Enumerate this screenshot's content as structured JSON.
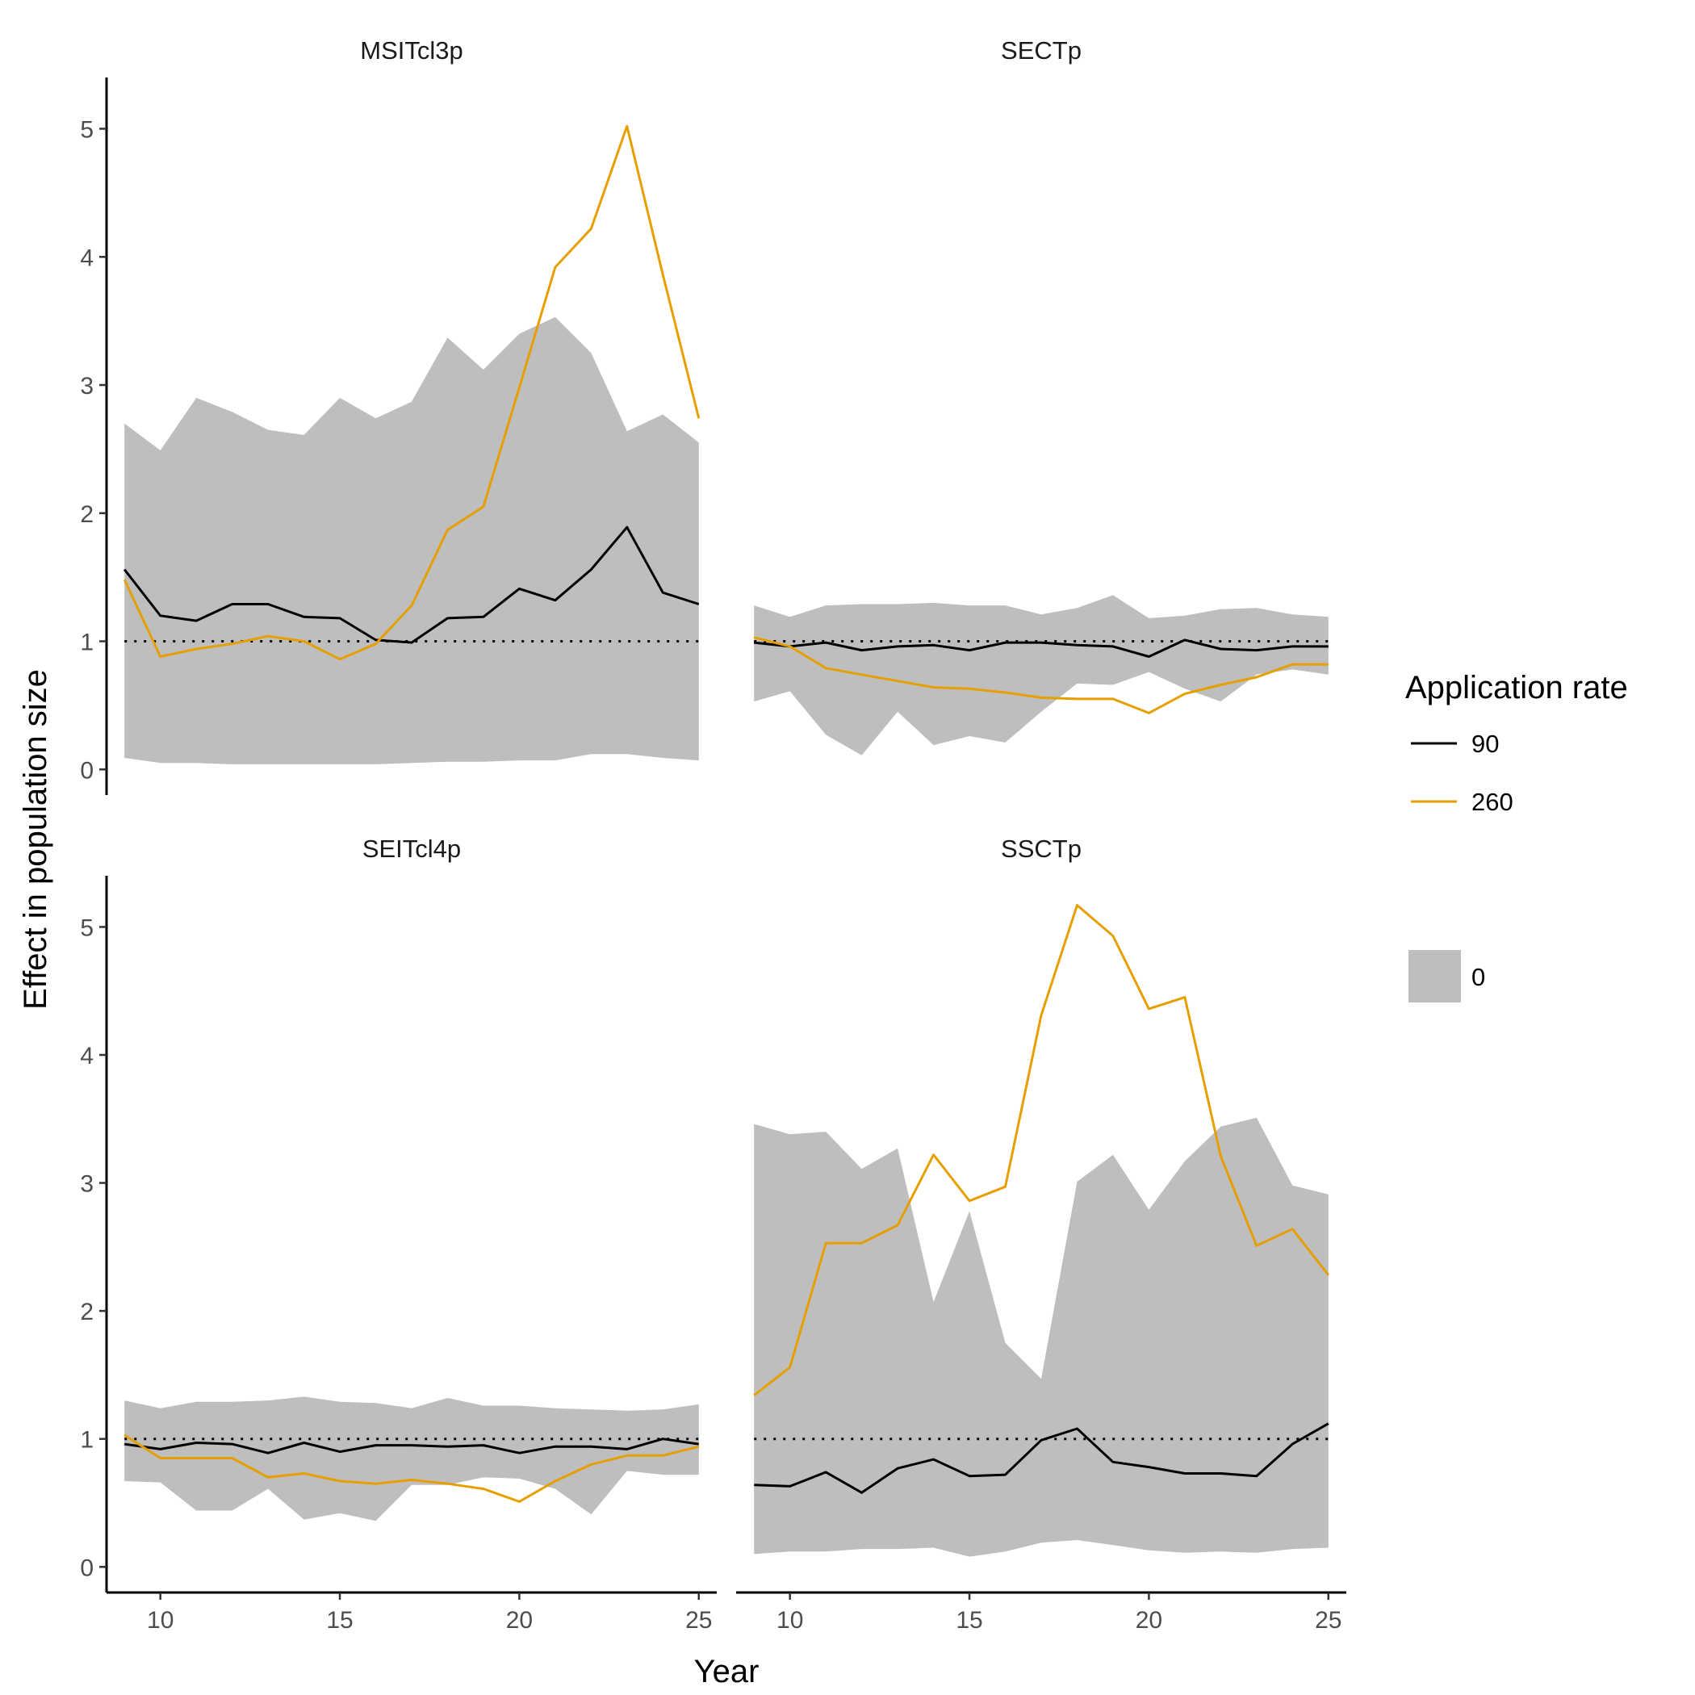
{
  "chart_data": {
    "type": "line",
    "facets": [
      "MSITcl3p",
      "SECTp",
      "SEITcl4p",
      "SSCTp"
    ],
    "xlabel": "Year",
    "ylabel": "Effect in population size",
    "x": [
      9,
      10,
      11,
      12,
      13,
      14,
      15,
      16,
      17,
      18,
      19,
      20,
      21,
      22,
      23,
      24,
      25
    ],
    "xlim": [
      8.5,
      25.5
    ],
    "ylim": [
      -0.2,
      5.4
    ],
    "x_ticks": [
      10,
      15,
      20,
      25
    ],
    "y_ticks": [
      0,
      1,
      2,
      3,
      4,
      5
    ],
    "reference_line": 1,
    "grid": false,
    "legend": {
      "position": "right",
      "title": "Application rate",
      "line_entries": [
        {
          "label": "90",
          "color": "#000000"
        },
        {
          "label": "260",
          "color": "#E69F00"
        }
      ],
      "band_entry": {
        "label": "0",
        "color": "#BEBEBE"
      }
    },
    "panels": [
      {
        "title": "MSITcl3p",
        "band_lower": [
          0.09,
          0.05,
          0.05,
          0.04,
          0.04,
          0.04,
          0.04,
          0.04,
          0.05,
          0.06,
          0.06,
          0.07,
          0.07,
          0.12,
          0.12,
          0.09,
          0.07
        ],
        "band_upper": [
          2.7,
          2.49,
          2.9,
          2.79,
          2.65,
          2.61,
          2.9,
          2.74,
          2.87,
          3.37,
          3.12,
          3.4,
          3.53,
          3.25,
          2.64,
          2.77,
          2.55
        ],
        "series": [
          {
            "name": "90",
            "values": [
              1.56,
              1.2,
              1.16,
              1.29,
              1.29,
              1.19,
              1.18,
              1.01,
              0.99,
              1.18,
              1.19,
              1.41,
              1.32,
              1.56,
              1.89,
              1.38,
              1.29
            ]
          },
          {
            "name": "260",
            "values": [
              1.48,
              0.88,
              0.94,
              0.98,
              1.04,
              1.0,
              0.86,
              0.98,
              1.28,
              1.87,
              2.05,
              2.98,
              3.92,
              4.22,
              5.02,
              3.86,
              2.74
            ]
          }
        ]
      },
      {
        "title": "SECTp",
        "band_lower": [
          0.53,
          0.61,
          0.27,
          0.11,
          0.45,
          0.19,
          0.26,
          0.21,
          0.45,
          0.67,
          0.66,
          0.76,
          0.63,
          0.53,
          0.74,
          0.78,
          0.74
        ],
        "band_upper": [
          1.28,
          1.19,
          1.28,
          1.29,
          1.29,
          1.3,
          1.28,
          1.28,
          1.21,
          1.26,
          1.36,
          1.18,
          1.2,
          1.25,
          1.26,
          1.21,
          1.19
        ],
        "series": [
          {
            "name": "90",
            "values": [
              0.99,
              0.96,
              0.99,
              0.93,
              0.96,
              0.97,
              0.93,
              0.99,
              0.99,
              0.97,
              0.96,
              0.88,
              1.01,
              0.94,
              0.93,
              0.96,
              0.96
            ]
          },
          {
            "name": "260",
            "values": [
              1.03,
              0.96,
              0.79,
              0.74,
              0.69,
              0.64,
              0.63,
              0.6,
              0.56,
              0.55,
              0.55,
              0.44,
              0.59,
              0.66,
              0.72,
              0.82,
              0.82
            ]
          }
        ]
      },
      {
        "title": "SEITcl4p",
        "band_lower": [
          0.67,
          0.66,
          0.44,
          0.44,
          0.61,
          0.37,
          0.42,
          0.36,
          0.64,
          0.64,
          0.7,
          0.69,
          0.61,
          0.41,
          0.75,
          0.72,
          0.72
        ],
        "band_upper": [
          1.3,
          1.24,
          1.29,
          1.29,
          1.3,
          1.33,
          1.29,
          1.28,
          1.24,
          1.32,
          1.26,
          1.26,
          1.24,
          1.23,
          1.22,
          1.23,
          1.27
        ],
        "series": [
          {
            "name": "90",
            "values": [
              0.96,
              0.92,
              0.97,
              0.96,
              0.89,
              0.97,
              0.9,
              0.95,
              0.95,
              0.94,
              0.95,
              0.89,
              0.94,
              0.94,
              0.92,
              1.0,
              0.96
            ]
          },
          {
            "name": "260",
            "values": [
              1.03,
              0.85,
              0.85,
              0.85,
              0.7,
              0.73,
              0.67,
              0.65,
              0.68,
              0.65,
              0.61,
              0.51,
              0.67,
              0.8,
              0.87,
              0.87,
              0.94
            ]
          }
        ]
      },
      {
        "title": "SSCTp",
        "band_lower": [
          0.1,
          0.12,
          0.12,
          0.14,
          0.14,
          0.15,
          0.08,
          0.12,
          0.19,
          0.21,
          0.17,
          0.13,
          0.11,
          0.12,
          0.11,
          0.14,
          0.15
        ],
        "band_upper": [
          3.46,
          3.38,
          3.4,
          3.11,
          3.27,
          2.07,
          2.78,
          1.75,
          1.47,
          3.01,
          3.22,
          2.79,
          3.17,
          3.44,
          3.51,
          2.98,
          2.91
        ],
        "series": [
          {
            "name": "90",
            "values": [
              0.64,
              0.63,
              0.74,
              0.58,
              0.77,
              0.84,
              0.71,
              0.72,
              0.99,
              1.08,
              0.82,
              0.78,
              0.73,
              0.73,
              0.71,
              0.96,
              1.12
            ]
          },
          {
            "name": "260",
            "values": [
              1.34,
              1.56,
              2.53,
              2.53,
              2.67,
              3.22,
              2.86,
              2.97,
              4.31,
              5.17,
              4.93,
              4.36,
              4.45,
              3.21,
              2.51,
              2.64,
              2.28
            ]
          }
        ]
      }
    ]
  }
}
